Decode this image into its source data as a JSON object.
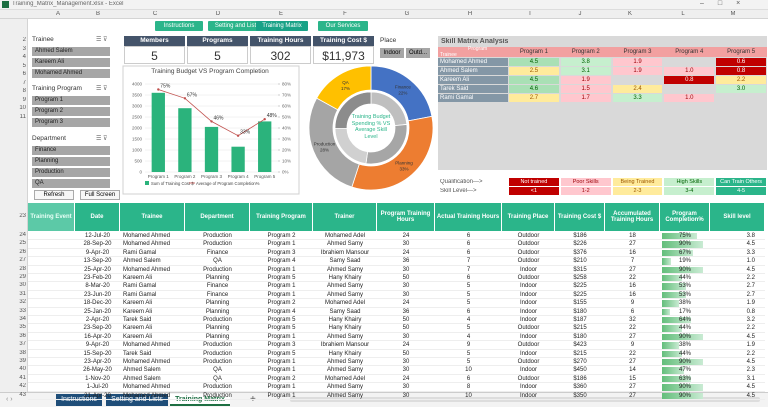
{
  "window": {
    "title": "Training_Matrix_Management.xlsx - Excel"
  },
  "columns": [
    "A",
    "B",
    "C",
    "D",
    "E",
    "F",
    "G",
    "H",
    "I",
    "J",
    "K",
    "L",
    "M"
  ],
  "dash_rows": [
    2,
    3,
    4,
    5,
    6,
    7,
    8,
    9,
    10,
    11
  ],
  "nav_buttons": [
    "Instructions",
    "Setting and Lists",
    "Training Matrix",
    "Our Services"
  ],
  "slicers": [
    {
      "title": "Trainee",
      "items": [
        "Ahmed Salem",
        "Kareem Ali",
        "Mohamed Ahmed"
      ]
    },
    {
      "title": "Training Program",
      "items": [
        "Program 1",
        "Program 2",
        "Program 3"
      ]
    },
    {
      "title": "Department",
      "items": [
        "Finance",
        "Planning",
        "Production",
        "QA"
      ]
    },
    {
      "title": "Place",
      "items": [
        "Indoor",
        "Outd..."
      ]
    }
  ],
  "actions": [
    "Refresh",
    "Full Screen"
  ],
  "kpis": [
    {
      "label": "Members",
      "value": 5
    },
    {
      "label": "Programs",
      "value": 5
    },
    {
      "label": "Training Hours",
      "value": 302
    },
    {
      "label": "Training Cost $",
      "value": "$11,973"
    }
  ],
  "chart_data": [
    {
      "type": "bar-line",
      "title": "Training Budget VS Program Completion",
      "categories": [
        "Program 1",
        "Program 2",
        "Program 3",
        "Program 4",
        "Program 5"
      ],
      "series": [
        {
          "name": "Sum of Training Cost $",
          "color": "#2bb37c",
          "values": [
            3600,
            2900,
            2050,
            1150,
            2300
          ]
        },
        {
          "name": "Average of Program Completion%",
          "color": "#c0504d",
          "axis": "y2",
          "values": [
            75,
            67,
            46,
            33,
            48
          ],
          "value_labels": [
            "75%",
            "67%",
            "46%",
            "33%",
            "48%"
          ]
        }
      ],
      "ylim": [
        0,
        4000
      ],
      "yticks": [
        0,
        500,
        1000,
        1500,
        2000,
        2500,
        3000,
        3500,
        4000
      ],
      "y2lim": [
        0,
        80
      ],
      "y2ticks": [
        {
          "value": 0,
          "label": "0%"
        },
        {
          "value": 10,
          "label": "10%"
        },
        {
          "value": 20,
          "label": "20%"
        },
        {
          "value": 30,
          "label": "30%"
        },
        {
          "value": 40,
          "label": "40%"
        },
        {
          "value": 50,
          "label": "50%"
        },
        {
          "value": 60,
          "label": "60%"
        },
        {
          "value": 70,
          "label": "70%"
        },
        {
          "value": 80,
          "label": "80%"
        }
      ]
    },
    {
      "type": "donut",
      "title": "Training Budget Spending % VS Average Skill Level",
      "categories": [
        "Finance",
        "Planning",
        "Production",
        "QA"
      ],
      "series": [
        {
          "name": "Training Budget Spending %",
          "colors": [
            "#4472c4",
            "#ed7d31",
            "#a5a5a5",
            "#ffc000"
          ],
          "values": [
            22,
            33,
            28,
            17
          ],
          "value_labels": [
            "22%",
            "33%",
            "28%",
            "17%"
          ]
        },
        {
          "name": "Average Skill Level",
          "colors": [
            "#bfbfbf",
            "#a6a6a6",
            "#d0d0d0",
            "#8c8c8c"
          ],
          "values": [
            2.6,
            3.2,
            2.5,
            2.8
          ]
        }
      ]
    }
  ],
  "skill_matrix": {
    "title": "Skill Matrix Analysis",
    "corner_top": "Program",
    "corner_bottom": "Trainee",
    "columns": [
      "Program 1",
      "Program 2",
      "Program 3",
      "Program 4",
      "Program 5"
    ],
    "rows": [
      {
        "name": "Mohamed Ahmed",
        "values": [
          "4.5",
          "3.8",
          "1.9",
          null,
          "0.6"
        ]
      },
      {
        "name": "Ahmed Salem",
        "values": [
          "2.5",
          "3.1",
          "1.9",
          "1.0",
          "0.8"
        ]
      },
      {
        "name": "Kareem Ali",
        "values": [
          "4.5",
          "1.9",
          null,
          "0.8",
          "2.2"
        ]
      },
      {
        "name": "Tarek Said",
        "values": [
          "4.6",
          "1.5",
          "2.4",
          null,
          "3.0"
        ]
      },
      {
        "name": "Rami Gamal",
        "values": [
          "2.7",
          "1.7",
          "3.3",
          "1.0",
          null
        ]
      }
    ]
  },
  "qualification": {
    "label": "Qualification--->",
    "levels": [
      "Not trained",
      "Poor Skills",
      "Being Trained",
      "High Skills",
      "Can Train Others"
    ],
    "skill_label": "Skill Level--->",
    "ranges": [
      "<1",
      "1-2",
      "2-3",
      "3-4",
      "4-5"
    ]
  },
  "table": {
    "header_row": 23,
    "row_numbers": [
      24,
      25,
      26,
      27,
      28,
      29,
      30,
      31,
      32,
      33,
      34,
      35,
      36,
      37,
      38,
      39,
      40,
      41,
      42,
      43
    ],
    "headers": [
      "Training Event",
      "Date",
      "Trainee",
      "Department",
      "Training Program",
      "Trainer",
      "Program Training Hours",
      "Actual Training Hours",
      "Training Place",
      "Training Cost $",
      "Accumulated Training Hours",
      "Program Completion%",
      "Skill level"
    ],
    "rows": [
      [
        "",
        "12-Jul-20",
        "Mohamed Ahmed",
        "Production",
        "Program 2",
        "Mohamed Adel",
        "24",
        "6",
        "Outdoor",
        "$186",
        "18",
        "75%",
        "3.8"
      ],
      [
        "",
        "28-Sep-20",
        "Mohamed Ahmed",
        "Production",
        "Program 1",
        "Ahmed Samy",
        "30",
        "6",
        "Outdoor",
        "$226",
        "27",
        "90%",
        "4.5"
      ],
      [
        "",
        "9-Apr-20",
        "Rami Gamal",
        "Finance",
        "Program 3",
        "Ibrahiem Mansour",
        "24",
        "6",
        "Outdoor",
        "$376",
        "16",
        "67%",
        "3.3"
      ],
      [
        "",
        "13-Sep-20",
        "Ahmed Salem",
        "QA",
        "Program 4",
        "Samy Saad",
        "36",
        "7",
        "Outdoor",
        "$210",
        "7",
        "19%",
        "1.0"
      ],
      [
        "",
        "25-Apr-20",
        "Mohamed Ahmed",
        "Production",
        "Program 1",
        "Ahmed Samy",
        "30",
        "7",
        "Indoor",
        "$315",
        "27",
        "90%",
        "4.5"
      ],
      [
        "",
        "23-Feb-20",
        "Kareem Ali",
        "Planning",
        "Program 5",
        "Hany Khairy",
        "50",
        "6",
        "Outdoor",
        "$258",
        "22",
        "44%",
        "2.2"
      ],
      [
        "",
        "8-Mar-20",
        "Rami Gamal",
        "Finance",
        "Program 1",
        "Ahmed Samy",
        "30",
        "5",
        "Indoor",
        "$225",
        "16",
        "53%",
        "2.7"
      ],
      [
        "",
        "23-Jun-20",
        "Rami Gamal",
        "Finance",
        "Program 1",
        "Ahmed Samy",
        "30",
        "5",
        "Indoor",
        "$225",
        "16",
        "53%",
        "2.7"
      ],
      [
        "",
        "18-Dec-20",
        "Kareem Ali",
        "Planning",
        "Program 2",
        "Mohamed Adel",
        "24",
        "5",
        "Indoor",
        "$155",
        "9",
        "38%",
        "1.9"
      ],
      [
        "",
        "25-Jan-20",
        "Kareem Ali",
        "Planning",
        "Program 4",
        "Samy Saad",
        "36",
        "6",
        "Indoor",
        "$180",
        "6",
        "17%",
        "0.8"
      ],
      [
        "",
        "2-Apr-20",
        "Tarek Said",
        "Production",
        "Program 5",
        "Hany Khairy",
        "50",
        "4",
        "Indoor",
        "$187",
        "32",
        "64%",
        "3.2"
      ],
      [
        "",
        "23-Sep-20",
        "Kareem Ali",
        "Planning",
        "Program 5",
        "Hany Khairy",
        "50",
        "5",
        "Outdoor",
        "$215",
        "22",
        "44%",
        "2.2"
      ],
      [
        "",
        "16-Apr-20",
        "Kareem Ali",
        "Planning",
        "Program 1",
        "Ahmed Samy",
        "30",
        "4",
        "Indoor",
        "$180",
        "27",
        "90%",
        "4.5"
      ],
      [
        "",
        "9-Apr-20",
        "Mohamed Ahmed",
        "Production",
        "Program 3",
        "Ibrahiem Mansour",
        "24",
        "9",
        "Outdoor",
        "$423",
        "9",
        "38%",
        "1.9"
      ],
      [
        "",
        "15-Sep-20",
        "Tarek Said",
        "Production",
        "Program 5",
        "Hany Khairy",
        "50",
        "5",
        "Indoor",
        "$215",
        "22",
        "44%",
        "2.2"
      ],
      [
        "",
        "23-Apr-20",
        "Mohamed Ahmed",
        "Production",
        "Program 1",
        "Ahmed Samy",
        "30",
        "5",
        "Outdoor",
        "$270",
        "27",
        "90%",
        "4.5"
      ],
      [
        "",
        "26-May-20",
        "Ahmed Salem",
        "QA",
        "Program 1",
        "Ahmed Samy",
        "30",
        "10",
        "Indoor",
        "$450",
        "14",
        "47%",
        "2.3"
      ],
      [
        "",
        "1-Nov-20",
        "Ahmed Salem",
        "QA",
        "Program 2",
        "Mohamed Adel",
        "24",
        "6",
        "Outdoor",
        "$186",
        "15",
        "63%",
        "3.1"
      ],
      [
        "",
        "1-Jul-20",
        "Mohamed Ahmed",
        "Production",
        "Program 1",
        "Ahmed Samy",
        "30",
        "8",
        "Indoor",
        "$360",
        "27",
        "90%",
        "4.5"
      ],
      [
        "",
        "21-Apr-20",
        "Mohamed Ahmed",
        "Production",
        "Program 1",
        "Ahmed Samy",
        "30",
        "10",
        "Indoor",
        "$350",
        "27",
        "90%",
        "4.5"
      ]
    ]
  },
  "tabs": [
    "Instructions",
    "Setting and Lists",
    "Training Matrix"
  ]
}
